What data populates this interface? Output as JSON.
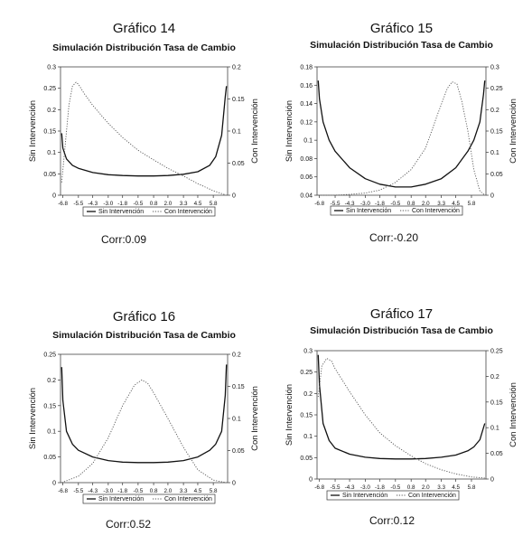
{
  "chart_data": [
    {
      "type": "line",
      "title": "Gráfico 14",
      "subtitle": "Simulación Distribución Tasa de Cambio",
      "ylabel_left": "Sin Intervención",
      "ylabel_right": "Con Intervención",
      "ylim_left": [
        0,
        0.3
      ],
      "ylim_right": [
        0,
        0.2
      ],
      "yticks_left": [
        "0",
        "0.05",
        "0.1",
        "0.15",
        "0.2",
        "0.25",
        "0.3"
      ],
      "yticks_right": [
        "0",
        "0.05",
        "0.1",
        "0.15",
        "0.2"
      ],
      "xticks": [
        "-6.8",
        "-5.5",
        "-4.3",
        "-3.0",
        "-1.8",
        "-0.5",
        "0.8",
        "2.0",
        "3.3",
        "4.5",
        "5.8"
      ],
      "xlim": [
        -7,
        7
      ],
      "series": [
        {
          "name": "Sin Intervención",
          "axis": "left",
          "style": "solid",
          "x": [
            -6.9,
            -6.8,
            -6.5,
            -6.0,
            -5.5,
            -4.3,
            -3.0,
            -1.8,
            -0.5,
            0.8,
            2.0,
            3.3,
            4.5,
            5.5,
            6.0,
            6.5,
            6.8,
            6.9
          ],
          "y": [
            0.145,
            0.11,
            0.085,
            0.07,
            0.063,
            0.053,
            0.048,
            0.046,
            0.045,
            0.045,
            0.046,
            0.049,
            0.055,
            0.07,
            0.09,
            0.14,
            0.23,
            0.255
          ]
        },
        {
          "name": "Con Intervención",
          "axis": "right",
          "style": "dotted",
          "x": [
            -6.9,
            -6.6,
            -6.3,
            -6.0,
            -5.7,
            -5.5,
            -5.0,
            -4.3,
            -3.0,
            -1.8,
            -0.5,
            0.8,
            2.0,
            3.3,
            4.5,
            5.8,
            6.9
          ],
          "y": [
            0.02,
            0.08,
            0.14,
            0.17,
            0.176,
            0.173,
            0.158,
            0.14,
            0.112,
            0.09,
            0.07,
            0.055,
            0.042,
            0.03,
            0.018,
            0.007,
            0.0
          ]
        }
      ],
      "legend": [
        "Sin Intervención",
        "Con Intervención"
      ],
      "legend_position": "bottom",
      "annotation": "Corr:0.09"
    },
    {
      "type": "line",
      "title": "Gráfico 15",
      "subtitle": "Simulación Distribución Tasa de Cambio",
      "ylabel_left": "Sin Intervención",
      "ylabel_right": "Con Intervención",
      "ylim_left": [
        0.04,
        0.18
      ],
      "ylim_right": [
        0,
        0.3
      ],
      "yticks_left": [
        "0.04",
        "0.06",
        "0.08",
        "0.1",
        "0.12",
        "0.14",
        "0.16",
        "0.18"
      ],
      "yticks_right": [
        "0",
        "0.05",
        "0.1",
        "0.15",
        "0.2",
        "0.25",
        "0.3"
      ],
      "xticks": [
        "-6.8",
        "-5.5",
        "-4.3",
        "-3.0",
        "-1.8",
        "-0.5",
        "0.8",
        "2.0",
        "3.3",
        "4.5",
        "5.8"
      ],
      "xlim": [
        -7,
        7
      ],
      "series": [
        {
          "name": "Sin Intervención",
          "axis": "left",
          "style": "solid",
          "x": [
            -6.9,
            -6.8,
            -6.5,
            -6.0,
            -5.5,
            -4.3,
            -3.0,
            -1.8,
            -0.5,
            0.8,
            2.0,
            3.3,
            4.5,
            5.5,
            6.0,
            6.5,
            6.8,
            6.9
          ],
          "y": [
            0.165,
            0.145,
            0.12,
            0.1,
            0.088,
            0.07,
            0.058,
            0.052,
            0.049,
            0.049,
            0.052,
            0.058,
            0.07,
            0.088,
            0.1,
            0.12,
            0.15,
            0.165
          ]
        },
        {
          "name": "Con Intervención",
          "axis": "right",
          "style": "dotted",
          "x": [
            -6.9,
            -5.5,
            -4.3,
            -3.0,
            -1.8,
            -0.5,
            0.8,
            2.0,
            3.0,
            3.8,
            4.2,
            4.6,
            5.0,
            5.5,
            6.0,
            6.5,
            6.9
          ],
          "y": [
            0.0,
            0.0,
            0.002,
            0.005,
            0.012,
            0.03,
            0.06,
            0.11,
            0.19,
            0.25,
            0.265,
            0.26,
            0.22,
            0.15,
            0.06,
            0.01,
            0.0
          ]
        }
      ],
      "legend": [
        "Sin Intervención",
        "Con Intervención"
      ],
      "legend_position": "bottom",
      "annotation": "Corr:-0.20"
    },
    {
      "type": "line",
      "title": "Gráfico 16",
      "subtitle": "Simulación Distribución Tasa de Cambio",
      "ylabel_left": "Sin Intervención",
      "ylabel_right": "Con Intervención",
      "ylim_left": [
        0,
        0.25
      ],
      "ylim_right": [
        0,
        0.2
      ],
      "yticks_left": [
        "0",
        "0.05",
        "0.1",
        "0.15",
        "0.2",
        "0.25"
      ],
      "yticks_right": [
        "0",
        "0.05",
        "0.1",
        "0.15",
        "0.2"
      ],
      "xticks": [
        "-6.8",
        "-5.5",
        "-4.3",
        "-3.0",
        "-1.8",
        "-0.5",
        "0.8",
        "2.0",
        "3.3",
        "4.5",
        "5.8"
      ],
      "xlim": [
        -7,
        7
      ],
      "series": [
        {
          "name": "Sin Intervención",
          "axis": "left",
          "style": "solid",
          "x": [
            -6.9,
            -6.8,
            -6.5,
            -6.0,
            -5.5,
            -4.3,
            -3.0,
            -1.8,
            -0.5,
            0.8,
            2.0,
            3.3,
            4.5,
            5.5,
            6.0,
            6.5,
            6.8,
            6.9
          ],
          "y": [
            0.225,
            0.16,
            0.1,
            0.075,
            0.063,
            0.05,
            0.043,
            0.04,
            0.039,
            0.039,
            0.04,
            0.043,
            0.05,
            0.063,
            0.075,
            0.1,
            0.17,
            0.23
          ]
        },
        {
          "name": "Con Intervención",
          "axis": "right",
          "style": "dotted",
          "x": [
            -6.9,
            -5.5,
            -4.3,
            -3.0,
            -1.8,
            -0.8,
            -0.2,
            0.3,
            0.8,
            2.0,
            3.3,
            4.5,
            5.8,
            6.9
          ],
          "y": [
            0.0,
            0.01,
            0.03,
            0.07,
            0.12,
            0.152,
            0.16,
            0.155,
            0.14,
            0.1,
            0.055,
            0.02,
            0.004,
            0.0
          ]
        }
      ],
      "legend": [
        "Sin Intervención",
        "Con Intervención"
      ],
      "legend_position": "bottom",
      "annotation": "Corr:0.52"
    },
    {
      "type": "line",
      "title": "Gráfico 17",
      "subtitle": "Simulación Distribución Tasa de Cambio",
      "ylabel_left": "Sin Intervención",
      "ylabel_right": "Con Intervención",
      "ylim_left": [
        0,
        0.3
      ],
      "ylim_right": [
        0,
        0.25
      ],
      "yticks_left": [
        "0",
        "0.05",
        "0.1",
        "0.15",
        "0.2",
        "0.25",
        "0.3"
      ],
      "yticks_right": [
        "0",
        "0.05",
        "0.1",
        "0.15",
        "0.2",
        "0.25"
      ],
      "xticks": [
        "-6.8",
        "-5.5",
        "-4.3",
        "-3.0",
        "-1.8",
        "-0.5",
        "0.8",
        "2.0",
        "3.3",
        "4.5",
        "5.8"
      ],
      "xlim": [
        -7,
        7
      ],
      "series": [
        {
          "name": "Sin Intervención",
          "axis": "left",
          "style": "solid",
          "x": [
            -6.9,
            -6.8,
            -6.5,
            -6.0,
            -5.5,
            -4.3,
            -3.0,
            -1.8,
            -0.5,
            0.8,
            2.0,
            3.3,
            4.5,
            5.5,
            6.0,
            6.5,
            6.8,
            6.9
          ],
          "y": [
            0.29,
            0.22,
            0.13,
            0.09,
            0.072,
            0.058,
            0.051,
            0.048,
            0.047,
            0.047,
            0.048,
            0.051,
            0.056,
            0.066,
            0.075,
            0.092,
            0.12,
            0.13
          ]
        },
        {
          "name": "Con Intervención",
          "axis": "right",
          "style": "dotted",
          "x": [
            -6.9,
            -6.6,
            -6.2,
            -5.8,
            -5.5,
            -4.3,
            -3.0,
            -1.8,
            -0.5,
            0.8,
            2.0,
            3.3,
            4.5,
            5.8,
            6.9
          ],
          "y": [
            0.16,
            0.22,
            0.235,
            0.23,
            0.215,
            0.17,
            0.125,
            0.09,
            0.065,
            0.045,
            0.03,
            0.018,
            0.01,
            0.004,
            0.002
          ]
        }
      ],
      "legend": [
        "Sin Intervención",
        "Con Intervención"
      ],
      "legend_position": "bottom",
      "annotation": "Corr:0.12"
    }
  ]
}
